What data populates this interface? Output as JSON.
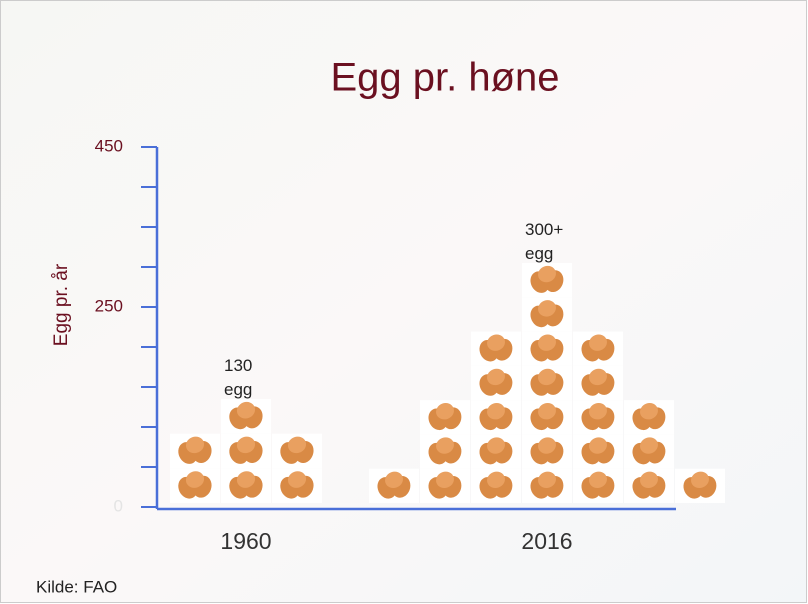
{
  "chart_data": {
    "type": "pictogram",
    "title": "Egg pr. høne",
    "y_label": "Egg pr. år",
    "categories": [
      "1960",
      "2016"
    ],
    "values": [
      130,
      300
    ],
    "value_labels": [
      "130 egg",
      "300+ egg"
    ],
    "ylim": [
      0,
      450
    ],
    "yticks": [
      0,
      250,
      450
    ],
    "y_minor_ticks": [
      50,
      100,
      150,
      200,
      300,
      350,
      400
    ],
    "axis_color": "#4a6fd8",
    "title_color": "#6b1020",
    "egg_color": "#d98a45",
    "source": "Kilde: FAO"
  }
}
